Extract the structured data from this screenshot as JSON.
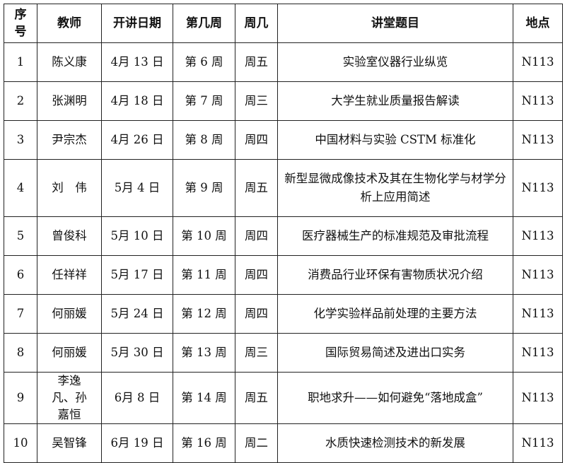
{
  "headers": [
    "序号",
    "教师",
    "开讲日期",
    "第几周",
    "周几",
    "讲堂题目",
    "地点"
  ],
  "rows": [
    {
      "no": "1",
      "teacher": "陈义康",
      "date": "4月 13 日",
      "week": "第 6 周",
      "day": "周五",
      "topic": "实验室仪器行业纵览",
      "place": "N113"
    },
    {
      "no": "2",
      "teacher": "张渊明",
      "date": "4月 18 日",
      "week": "第 7 周",
      "day": "周三",
      "topic": "大学生就业质量报告解读",
      "place": "N113"
    },
    {
      "no": "3",
      "teacher": "尹宗杰",
      "date": "4月 26 日",
      "week": "第 8 周",
      "day": "周四",
      "topic": "中国材料与实验 CSTM 标准化",
      "place": "N113"
    },
    {
      "no": "4",
      "teacher": "刘　伟",
      "date": "5月 4 日",
      "week": "第 9 周",
      "day": "周五",
      "topic": "新型显微成像技术及其在生物化学与材学分析上应用简述",
      "place": "N113"
    },
    {
      "no": "5",
      "teacher": "曾俊科",
      "date": "5月 10 日",
      "week": "第 10 周",
      "day": "周四",
      "topic": "医疗器械生产的标准规范及审批流程",
      "place": "N113"
    },
    {
      "no": "6",
      "teacher": "任祥祥",
      "date": "5月 17 日",
      "week": "第 11 周",
      "day": "周四",
      "topic": "消费品行业环保有害物质状况介绍",
      "place": "N113"
    },
    {
      "no": "7",
      "teacher": "何丽媛",
      "date": "5月 24 日",
      "week": "第 12 周",
      "day": "周四",
      "topic": "化学实验样品前处理的主要方法",
      "place": "N113"
    },
    {
      "no": "8",
      "teacher": "何丽媛",
      "date": "5月 30 日",
      "week": "第 13 周",
      "day": "周三",
      "topic": "国际贸易简述及进出口实务",
      "place": "N113"
    },
    {
      "no": "9",
      "teacher": "李逸凡、孙嘉恒",
      "date": "6月 8 日",
      "week": "第 14 周",
      "day": "周五",
      "topic": "职地求升——如何避免“落地成盒”",
      "place": "N113"
    },
    {
      "no": "10",
      "teacher": "吴智锋",
      "date": "6月 19 日",
      "week": "第 16 周",
      "day": "周二",
      "topic": "水质快速检测技术的新发展",
      "place": "N113"
    }
  ]
}
